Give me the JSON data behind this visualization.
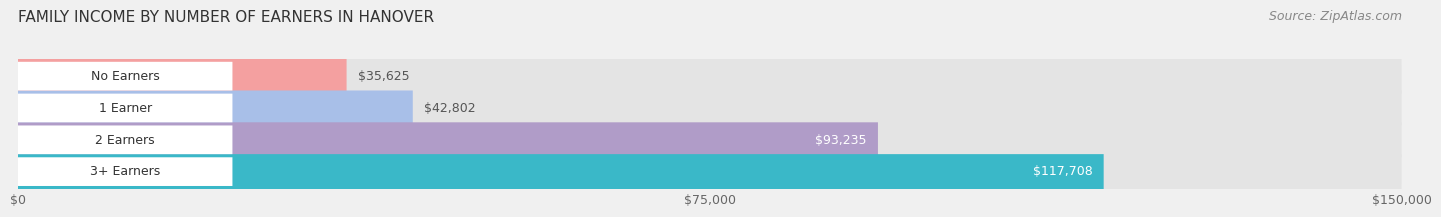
{
  "title": "FAMILY INCOME BY NUMBER OF EARNERS IN HANOVER",
  "source": "Source: ZipAtlas.com",
  "categories": [
    "No Earners",
    "1 Earner",
    "2 Earners",
    "3+ Earners"
  ],
  "values": [
    35625,
    42802,
    93235,
    117708
  ],
  "bar_colors": [
    "#f4a0a0",
    "#a8bfe8",
    "#b09cc8",
    "#3ab8c8"
  ],
  "value_label_inside": [
    false,
    false,
    true,
    true
  ],
  "x_max": 150000,
  "x_ticks": [
    0,
    75000,
    150000
  ],
  "x_tick_labels": [
    "$0",
    "$75,000",
    "$150,000"
  ],
  "background_color": "#f0f0f0",
  "bar_background_color": "#e4e4e4",
  "title_fontsize": 11,
  "source_fontsize": 9,
  "label_fontsize": 9,
  "value_fontsize": 9,
  "tick_fontsize": 9,
  "bar_height": 0.55
}
